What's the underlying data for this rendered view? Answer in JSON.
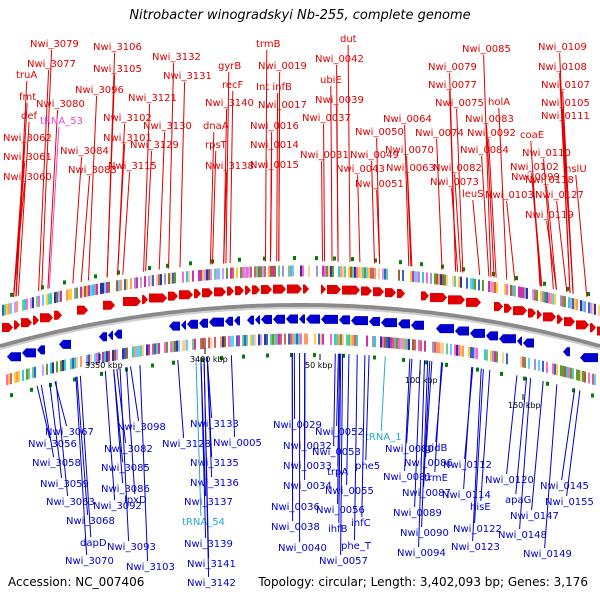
{
  "title": "Nitrobacter winogradskyi Nb-255, complete genome",
  "footer": {
    "accession": "Accession: NC_007406",
    "summary": "Topology: circular; Length: 3,402,093 bp; Genes: 3,176"
  },
  "colors": {
    "forward": "#e00000",
    "reverse": "#0000cc",
    "rna_pink": "#ee44cc",
    "rna_cyan": "#22aacc",
    "backbone": "#8a8a8a",
    "tick": "#008000"
  },
  "scale_labels": [
    "3350 kbp",
    "3400 kbp",
    "50 kbp",
    "100 kbp",
    "150 kbp"
  ],
  "top_labels": [
    "Nwi_3079",
    "Nwi_3106",
    "trmB",
    "dut",
    "Nwi_0085",
    "Nwi_0109",
    "Nwi_3077",
    "Nwi_3132",
    "Nwi_0042",
    "Nwi_0108",
    "truA",
    "Nwi_3105",
    "Nwi_3131",
    "gyrB",
    "Nwi_0019",
    "ubiE",
    "Nwi_0079",
    "Nwi_0107",
    "Nwi_3096",
    "recF",
    "Int infB",
    "Nwi_0077",
    "Nwi_0105",
    "fmt",
    "Nwi_3080",
    "Nwi_3121",
    "Nwi_3140",
    "Nwi_0017",
    "Nwi_0039",
    "holA",
    "def",
    "tRNA_53",
    "Nwi_3102",
    "dnaA",
    "Nwi_0037",
    "Nwi_0064",
    "Nwi_0075",
    "Nwi_0083",
    "Nwi_0111",
    "Nwi_3062",
    "Nwi_3101",
    "Nwi_3130",
    "Nwi_0016",
    "Nwi_0050",
    "Nwi_0074",
    "Nwi_0092",
    "coaE",
    "Nwi_3084",
    "Nwi_3129",
    "rpsT",
    "Nwi_0014",
    "Nwi_0070",
    "Nwi_0084",
    "Nwi_0110",
    "Nwi_3061",
    "Nwi_3115",
    "Nwi_3138",
    "Nwi_0031",
    "Nwi_0049",
    "Nwi_0102",
    "hslU",
    "Nwi_3083",
    "Nwi_0015",
    "Nwi_0043",
    "Nwi_0063",
    "Nwi_0082",
    "Nwi_0099",
    "Nwi_3060",
    "Nwi_0051",
    "Nwi_0073",
    "Nwi_0118",
    "leuS",
    "Nwi_0103",
    "Nwi_0127",
    "Nwi_0119"
  ],
  "bottom_labels": [
    "Nwi_3098",
    "Nwi_3133",
    "Nwi_0029",
    "Nwi_0052",
    "tRNA_1",
    "gidB",
    "Nwi_3067",
    "Nwi_3082",
    "Nwi_3128",
    "Nwi_0005",
    "Nwi_0032",
    "Nwi_0053",
    "Nwi_0080",
    "Nwi_0086",
    "Nwi_0112",
    "Nwi_3056",
    "Nwi_3135",
    "Nwi_0033",
    "trpA",
    "phe5",
    "trmE",
    "Nwi_0120",
    "Nwi_3058",
    "Nwi_3085",
    "Nwi_3136",
    "Nwi_0034",
    "Nwi_0055",
    "Nwi_0081",
    "Nwi_0087",
    "Nwi_0114",
    "Nwi_0145",
    "Nwi_3059",
    "Nwi_3086",
    "Nwi_3137",
    "Nwi_0036",
    "Nwi_0056",
    "Nwi_0089",
    "hisE",
    "apaG",
    "Nwi_0155",
    "Nwi_3063",
    "Nwi_3092",
    "lpxD",
    "tRNA_54",
    "Nwi_0038",
    "ihfB",
    "infC",
    "Nwi_0090",
    "Nwi_0122",
    "Nwi_0147",
    "Nwi_3068",
    "dapD",
    "Nwi_3139",
    "Nwi_0040",
    "phe_T",
    "Nwi_0094",
    "Nwi_0123",
    "Nwi_0148",
    "Nwi_3070",
    "Nwi_3093",
    "Nwi_3141",
    "Nwi_0057",
    "Nwi_0149",
    "Nwi_3103",
    "Nwi_3142"
  ]
}
